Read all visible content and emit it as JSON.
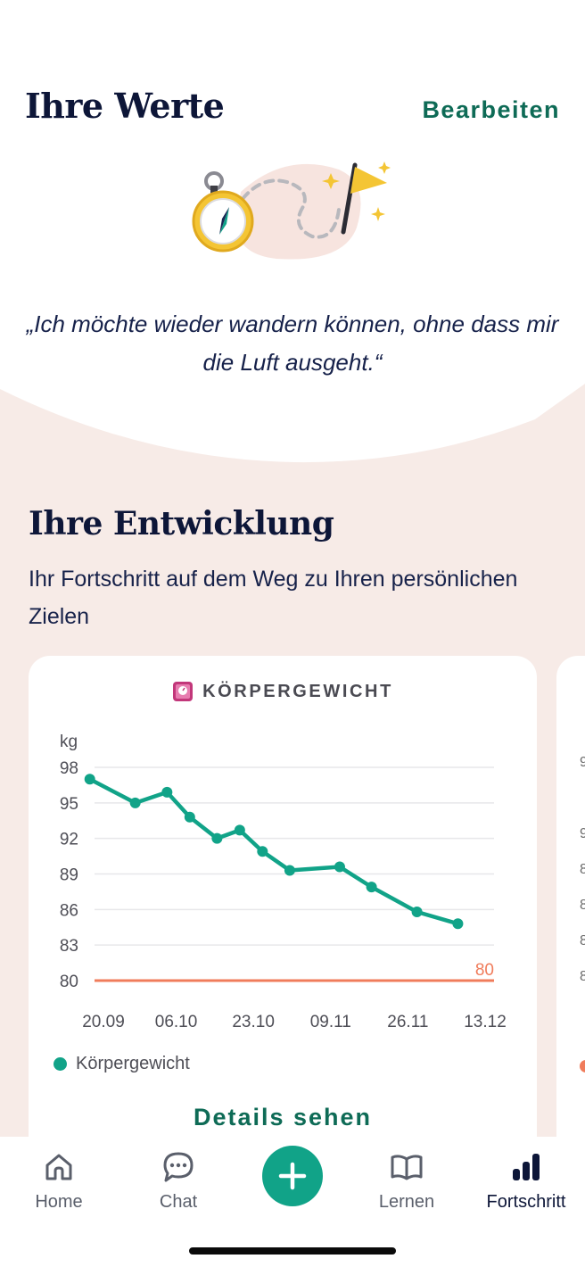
{
  "values": {
    "title": "Ihre Werte",
    "edit_label": "Bearbeiten",
    "quote": "„Ich möchte wieder wandern können, ohne dass mir die Luft ausgeht.“"
  },
  "development": {
    "title": "Ihre Entwicklung",
    "subtitle": "Ihr Fortschritt auf dem Weg zu Ihren persönlichen Zielen"
  },
  "weight_card": {
    "title": "KÖRPERGEWICHT",
    "details_label": "Details sehen",
    "legend_label": "Körpergewicht"
  },
  "chart_data": {
    "type": "line",
    "title": "KÖRPERGEWICHT",
    "ylabel": "kg",
    "ylim": [
      80,
      98
    ],
    "yticks": [
      98,
      95,
      92,
      89,
      86,
      83,
      80
    ],
    "x_tick_labels": [
      "20.09",
      "06.10",
      "23.10",
      "09.11",
      "26.11",
      "13.12"
    ],
    "x_ticks_day": [
      0,
      16,
      33,
      50,
      67,
      84
    ],
    "xlim_day": [
      0,
      84
    ],
    "series": [
      {
        "name": "Körpergewicht",
        "color": "#11a388",
        "day": [
          -3,
          7,
          14,
          19,
          25,
          30,
          35,
          41,
          52,
          59,
          69,
          78
        ],
        "values": [
          97.0,
          95.0,
          95.9,
          93.8,
          92.0,
          92.7,
          90.9,
          89.3,
          89.6,
          87.9,
          85.8,
          84.8
        ]
      }
    ],
    "target": {
      "value": 80,
      "label": "80",
      "color": "#f07c5b"
    },
    "grid": true,
    "legend": "bottom-left"
  },
  "peek_card": {
    "ticks": [
      "9",
      "9",
      "8",
      "8",
      "8",
      "8"
    ]
  },
  "tabs": [
    {
      "label": "Home",
      "icon": "home-icon"
    },
    {
      "label": "Chat",
      "icon": "chat-icon"
    },
    {
      "label": "Lernen",
      "icon": "book-icon"
    },
    {
      "label": "Fortschritt",
      "icon": "bar-chart-icon"
    }
  ],
  "colors": {
    "accent": "#11a388",
    "accent_dark": "#0e6b56",
    "target": "#f07c5b",
    "background_pink": "#f7ebe7",
    "navy": "#0d1638"
  }
}
